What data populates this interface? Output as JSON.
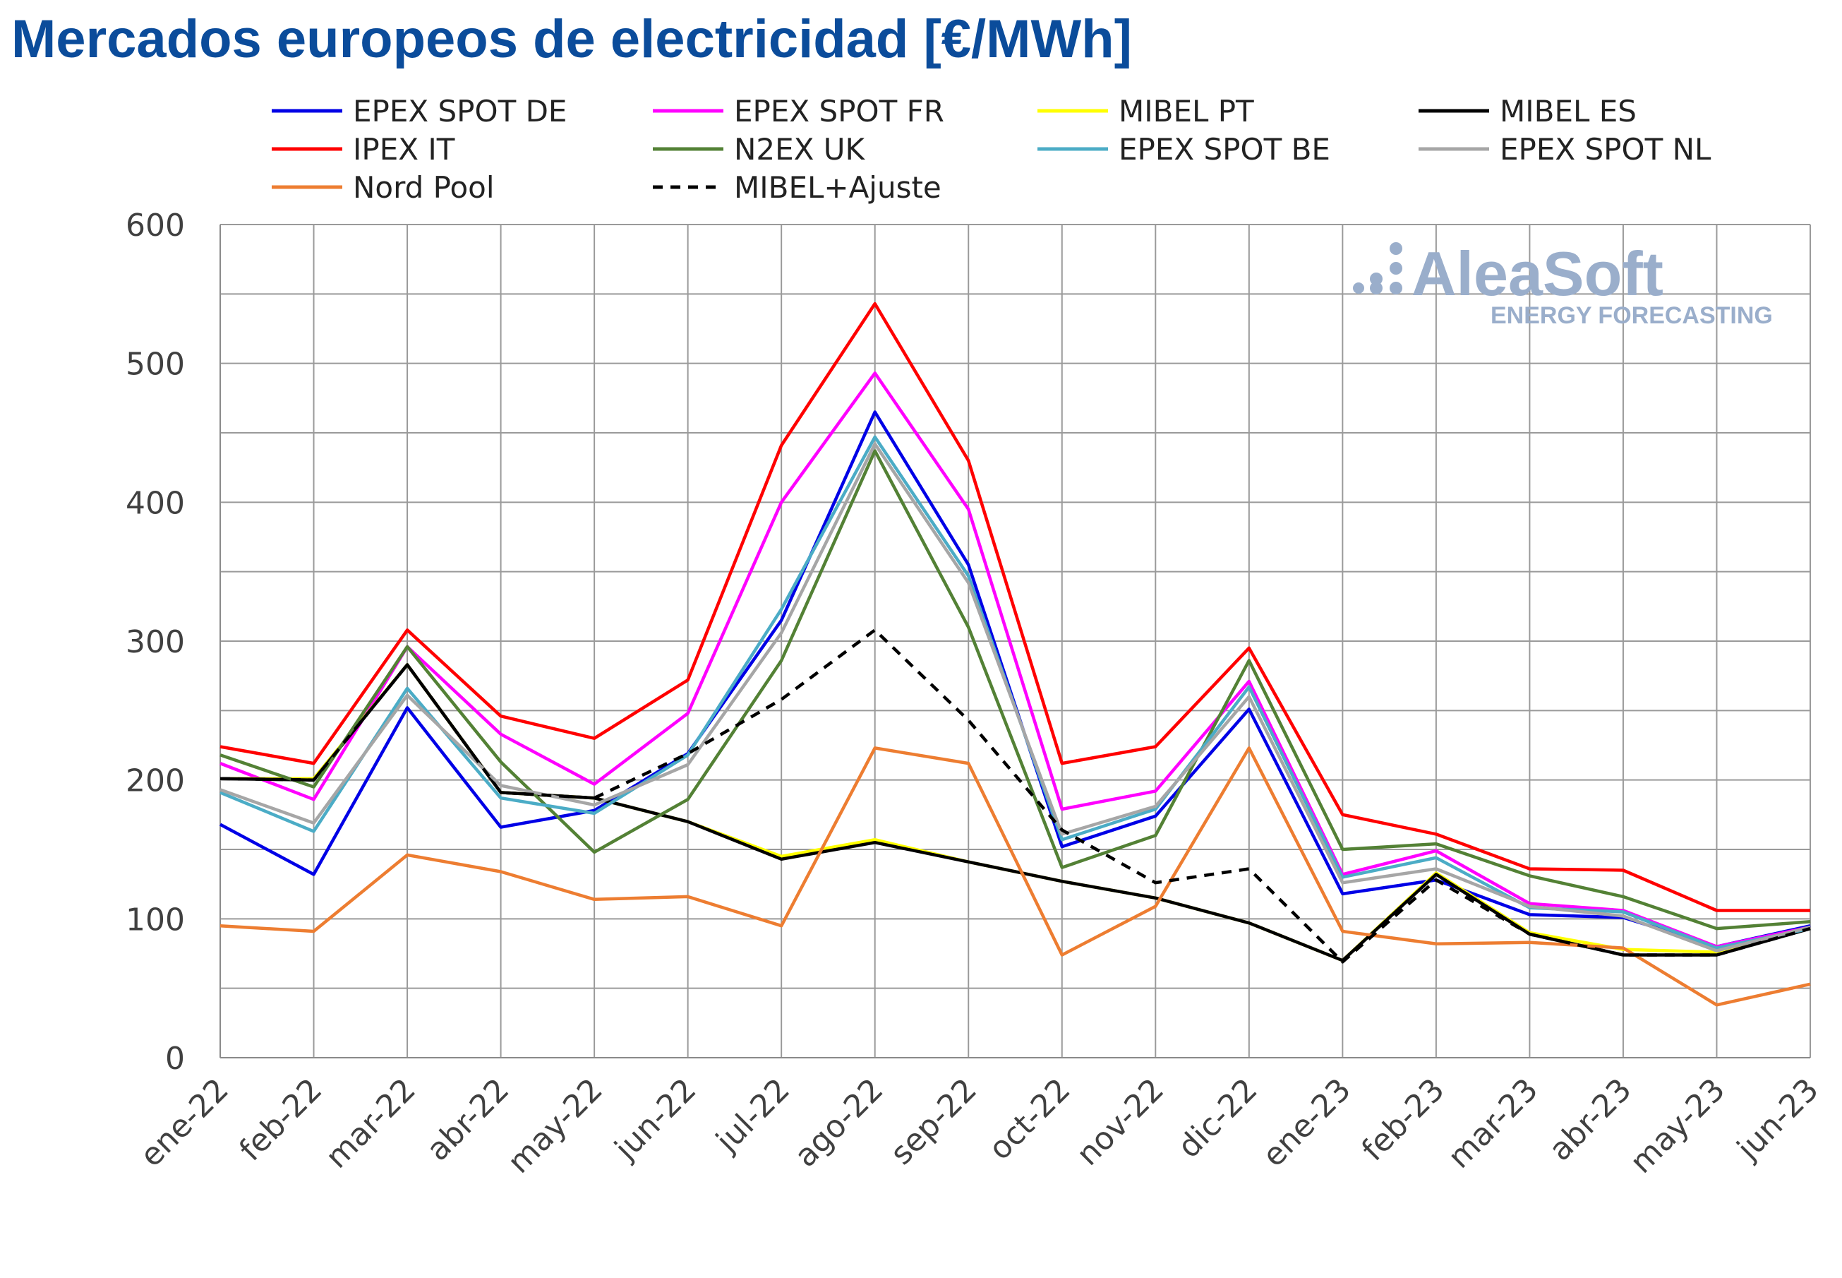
{
  "chart_data": {
    "type": "line",
    "title": "Mercados europeos de electricidad [€/MWh]",
    "xlabel": "",
    "ylabel": "",
    "ylim": [
      0,
      600
    ],
    "yticks": [
      "0",
      "100",
      "200",
      "300",
      "400",
      "500",
      "600"
    ],
    "grid": true,
    "legend_position": "top",
    "categories": [
      "ene-22",
      "feb-22",
      "mar-22",
      "abr-22",
      "may-22",
      "jun-22",
      "jul-22",
      "ago-22",
      "sep-22",
      "oct-22",
      "nov-22",
      "dic-22",
      "ene-23",
      "feb-23",
      "mar-23",
      "abr-23",
      "may-23",
      "jun-23"
    ],
    "series": [
      {
        "name": "EPEX SPOT DE",
        "color": "#0000e6",
        "dash": false,
        "values": [
          168,
          132,
          252,
          166,
          178,
          219,
          315,
          465,
          355,
          152,
          174,
          251,
          118,
          128,
          103,
          101,
          80,
          95
        ]
      },
      {
        "name": "EPEX SPOT FR",
        "color": "#ff00ff",
        "dash": false,
        "values": [
          212,
          186,
          296,
          233,
          197,
          248,
          400,
          493,
          395,
          179,
          192,
          271,
          132,
          149,
          111,
          106,
          80,
          94
        ]
      },
      {
        "name": "MIBEL PT",
        "color": "#ffff00",
        "dash": false,
        "values": [
          201,
          201,
          283,
          191,
          187,
          170,
          145,
          157,
          141,
          127,
          115,
          97,
          70,
          133,
          90,
          78,
          76,
          94
        ]
      },
      {
        "name": "MIBEL ES",
        "color": "#000000",
        "dash": false,
        "values": [
          201,
          200,
          283,
          191,
          187,
          170,
          143,
          155,
          141,
          127,
          115,
          97,
          70,
          132,
          89,
          74,
          74,
          93
        ]
      },
      {
        "name": "IPEX IT",
        "color": "#ff0000",
        "dash": false,
        "values": [
          224,
          212,
          308,
          246,
          230,
          272,
          441,
          543,
          430,
          212,
          224,
          295,
          175,
          161,
          136,
          135,
          106,
          106
        ]
      },
      {
        "name": "N2EX UK",
        "color": "#538135",
        "dash": false,
        "values": [
          218,
          195,
          296,
          213,
          148,
          186,
          286,
          437,
          310,
          137,
          160,
          286,
          150,
          154,
          131,
          116,
          93,
          98
        ]
      },
      {
        "name": "EPEX SPOT BE",
        "color": "#4bacc6",
        "dash": false,
        "values": [
          191,
          163,
          266,
          187,
          176,
          218,
          323,
          447,
          347,
          157,
          179,
          267,
          130,
          144,
          108,
          105,
          79,
          93
        ]
      },
      {
        "name": "EPEX SPOT NL",
        "color": "#a6a6a6",
        "dash": false,
        "values": [
          193,
          169,
          261,
          196,
          182,
          211,
          306,
          442,
          342,
          161,
          181,
          260,
          126,
          136,
          109,
          102,
          77,
          94
        ]
      },
      {
        "name": "Nord Pool",
        "color": "#ed7d31",
        "dash": false,
        "values": [
          95,
          91,
          146,
          134,
          114,
          116,
          95,
          223,
          212,
          74,
          109,
          223,
          91,
          82,
          83,
          79,
          38,
          53
        ]
      },
      {
        "name": "MIBEL+Ajuste",
        "color": "#000000",
        "dash": true,
        "values": [
          201,
          200,
          283,
          191,
          187,
          219,
          258,
          308,
          243,
          164,
          126,
          136,
          69,
          128,
          89,
          74,
          74,
          93
        ]
      }
    ]
  },
  "watermark": {
    "brand": "AleaSoft",
    "tagline": "ENERGY FORECASTING"
  }
}
